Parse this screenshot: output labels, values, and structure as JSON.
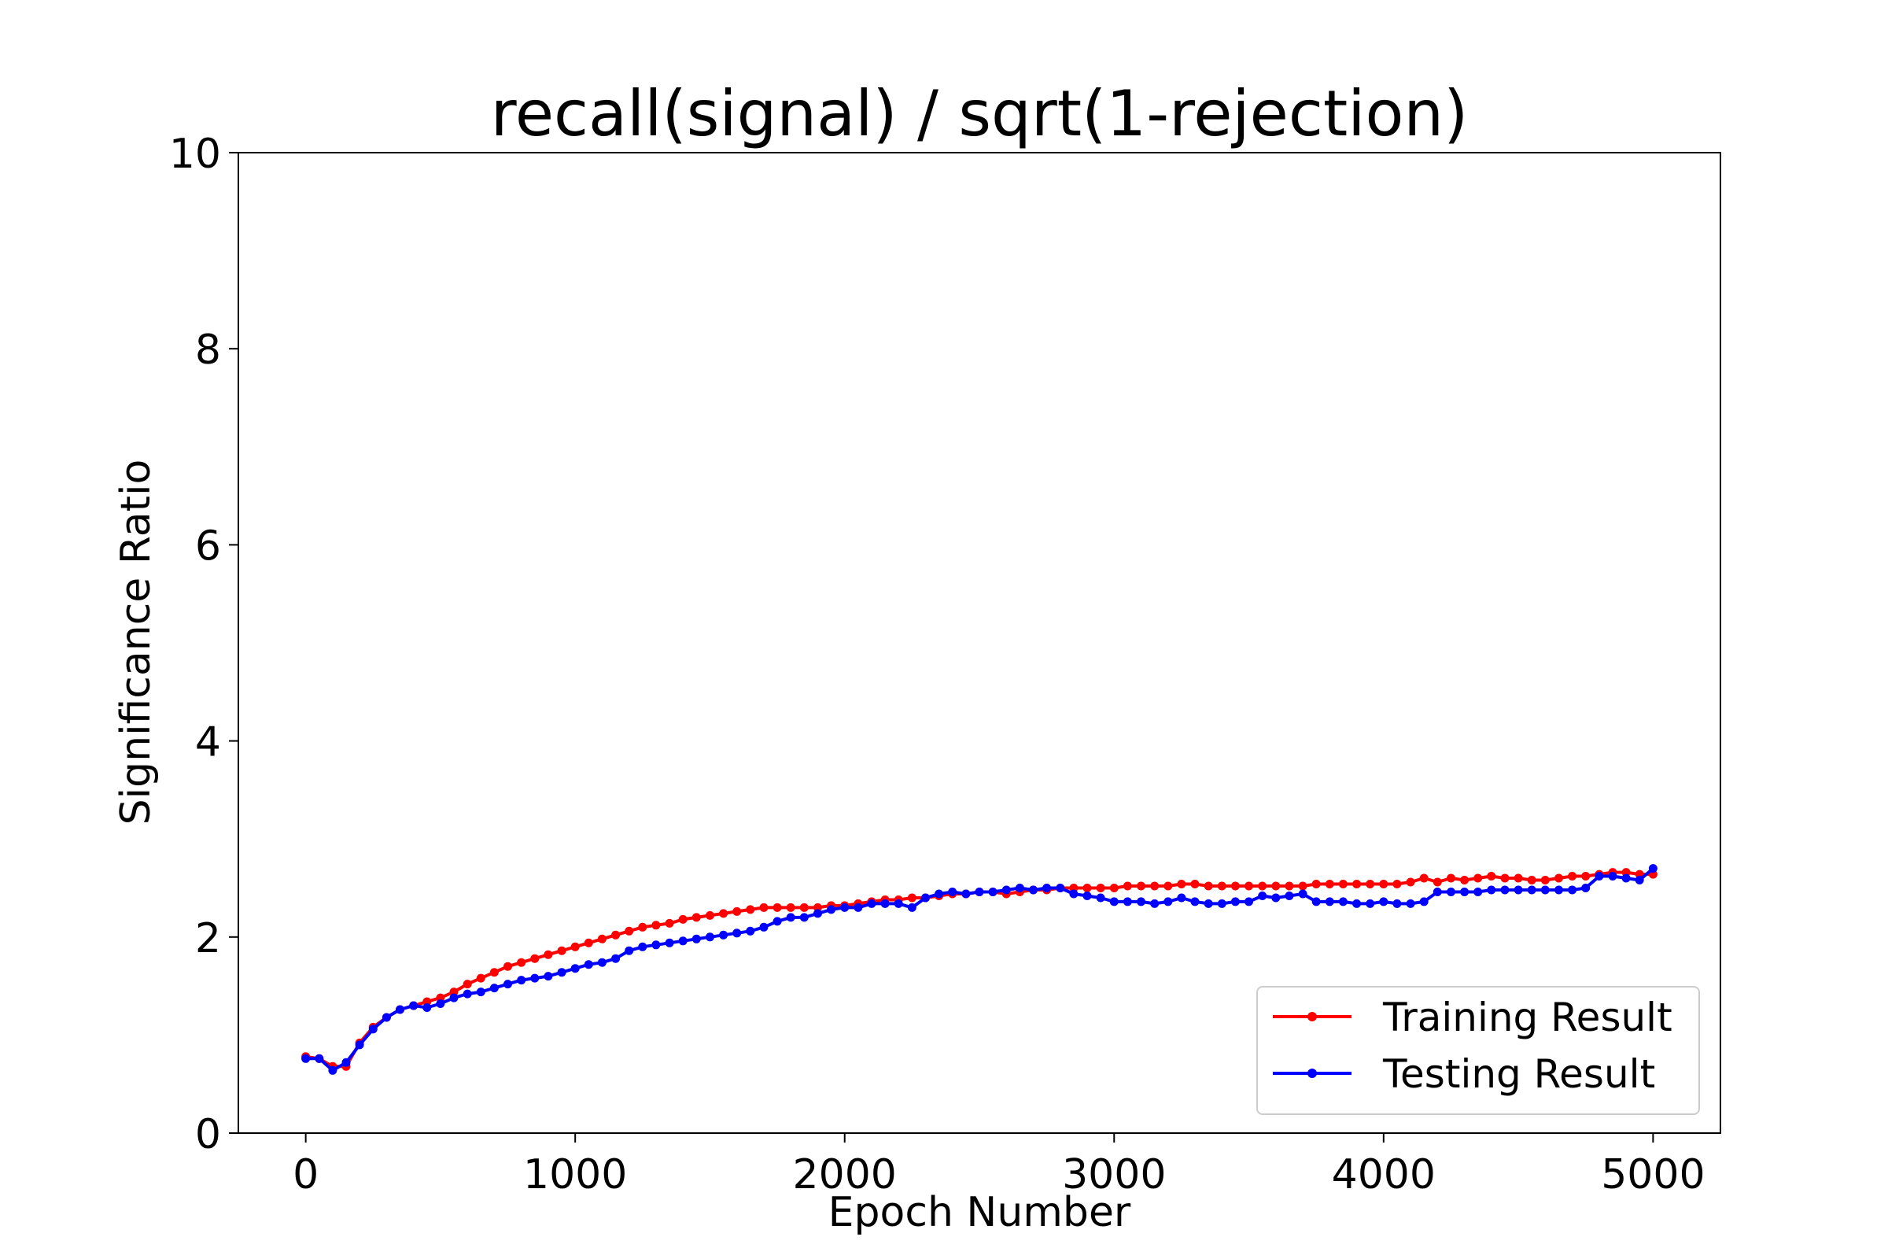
{
  "chart_data": {
    "type": "line",
    "title": "recall(signal) / sqrt(1-rejection)",
    "xlabel": "Epoch Number",
    "ylabel": "Significance Ratio",
    "xlim": [
      -250,
      5250
    ],
    "ylim": [
      0,
      10
    ],
    "xticks": [
      0,
      1000,
      2000,
      3000,
      4000,
      5000
    ],
    "yticks": [
      0,
      2,
      4,
      6,
      8,
      10
    ],
    "grid": false,
    "legend_position": "lower-right",
    "x": [
      0,
      50,
      100,
      150,
      200,
      250,
      300,
      350,
      400,
      450,
      500,
      550,
      600,
      650,
      700,
      750,
      800,
      850,
      900,
      950,
      1000,
      1050,
      1100,
      1150,
      1200,
      1250,
      1300,
      1350,
      1400,
      1450,
      1500,
      1550,
      1600,
      1650,
      1700,
      1750,
      1800,
      1850,
      1900,
      1950,
      2000,
      2050,
      2100,
      2150,
      2200,
      2250,
      2300,
      2350,
      2400,
      2450,
      2500,
      2550,
      2600,
      2650,
      2700,
      2750,
      2800,
      2850,
      2900,
      2950,
      3000,
      3050,
      3100,
      3150,
      3200,
      3250,
      3300,
      3350,
      3400,
      3450,
      3500,
      3550,
      3600,
      3650,
      3700,
      3750,
      3800,
      3850,
      3900,
      3950,
      4000,
      4050,
      4100,
      4150,
      4200,
      4250,
      4300,
      4350,
      4400,
      4450,
      4500,
      4550,
      4600,
      4650,
      4700,
      4750,
      4800,
      4850,
      4900,
      4950,
      5000
    ],
    "series": [
      {
        "name": "Training Result",
        "color": "#ff0000",
        "values": [
          0.78,
          0.76,
          0.68,
          0.68,
          0.92,
          1.08,
          1.18,
          1.26,
          1.3,
          1.34,
          1.38,
          1.44,
          1.52,
          1.58,
          1.64,
          1.7,
          1.74,
          1.78,
          1.82,
          1.86,
          1.9,
          1.94,
          1.98,
          2.02,
          2.06,
          2.1,
          2.12,
          2.14,
          2.18,
          2.2,
          2.22,
          2.24,
          2.26,
          2.28,
          2.3,
          2.3,
          2.3,
          2.3,
          2.3,
          2.32,
          2.32,
          2.34,
          2.36,
          2.38,
          2.38,
          2.4,
          2.4,
          2.42,
          2.44,
          2.44,
          2.46,
          2.46,
          2.44,
          2.46,
          2.48,
          2.48,
          2.5,
          2.5,
          2.5,
          2.5,
          2.5,
          2.52,
          2.52,
          2.52,
          2.52,
          2.54,
          2.54,
          2.52,
          2.52,
          2.52,
          2.52,
          2.52,
          2.52,
          2.52,
          2.52,
          2.54,
          2.54,
          2.54,
          2.54,
          2.54,
          2.54,
          2.54,
          2.56,
          2.6,
          2.56,
          2.6,
          2.58,
          2.6,
          2.62,
          2.6,
          2.6,
          2.58,
          2.58,
          2.6,
          2.62,
          2.62,
          2.64,
          2.66,
          2.66,
          2.64,
          2.64
        ]
      },
      {
        "name": "Testing Result",
        "color": "#0000ff",
        "values": [
          0.76,
          0.76,
          0.64,
          0.72,
          0.9,
          1.06,
          1.18,
          1.26,
          1.3,
          1.28,
          1.32,
          1.38,
          1.42,
          1.44,
          1.48,
          1.52,
          1.56,
          1.58,
          1.6,
          1.64,
          1.68,
          1.72,
          1.74,
          1.78,
          1.86,
          1.9,
          1.92,
          1.94,
          1.96,
          1.98,
          2.0,
          2.02,
          2.04,
          2.06,
          2.1,
          2.16,
          2.2,
          2.2,
          2.24,
          2.28,
          2.3,
          2.3,
          2.34,
          2.34,
          2.34,
          2.3,
          2.4,
          2.44,
          2.46,
          2.44,
          2.46,
          2.46,
          2.48,
          2.5,
          2.48,
          2.5,
          2.5,
          2.44,
          2.42,
          2.4,
          2.36,
          2.36,
          2.36,
          2.34,
          2.36,
          2.4,
          2.36,
          2.34,
          2.34,
          2.36,
          2.36,
          2.42,
          2.4,
          2.42,
          2.44,
          2.36,
          2.36,
          2.36,
          2.34,
          2.34,
          2.36,
          2.34,
          2.34,
          2.36,
          2.46,
          2.46,
          2.46,
          2.46,
          2.48,
          2.48,
          2.48,
          2.48,
          2.48,
          2.48,
          2.48,
          2.5,
          2.62,
          2.62,
          2.6,
          2.58,
          2.7
        ]
      }
    ]
  }
}
